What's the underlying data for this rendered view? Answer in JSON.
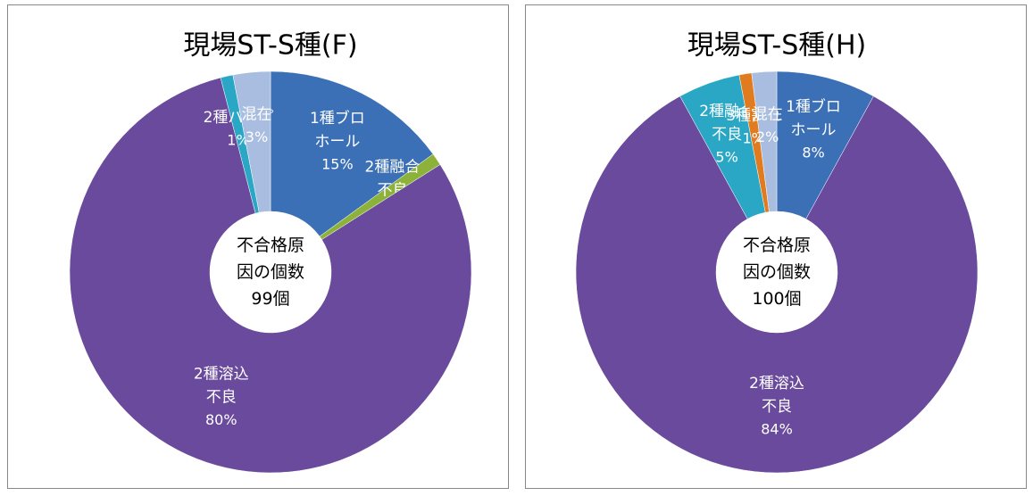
{
  "chart_data": [
    {
      "type": "donut",
      "title": "現場ST-S種(F)",
      "center_text": "不合格原因の個数99個",
      "categories": [
        "1種ブロホール",
        "2種融合不良",
        "2種溶込不良",
        "2種パイプ",
        "混在"
      ],
      "values": [
        15,
        1,
        80,
        1,
        3
      ],
      "value_labels": [
        "15%",
        "1%",
        "80%",
        "1%",
        "3%"
      ],
      "colors": [
        "#3b6fb6",
        "#8db23a",
        "#6a4a9c",
        "#2aa7c5",
        "#a8bde0"
      ]
    },
    {
      "type": "donut",
      "title": "現場ST-S種(H)",
      "center_text": "不合格原因の個数100個",
      "categories": [
        "1種ブロホール",
        "2種溶込不良",
        "2種融合不良",
        "3種割れ",
        "混在"
      ],
      "values": [
        8,
        84,
        5,
        1,
        2
      ],
      "value_labels": [
        "8%",
        "84%",
        "5%",
        "1%",
        "2%"
      ],
      "colors": [
        "#3b6fb6",
        "#6a4a9c",
        "#2aa7c5",
        "#e07b1f",
        "#a8bde0"
      ]
    }
  ]
}
